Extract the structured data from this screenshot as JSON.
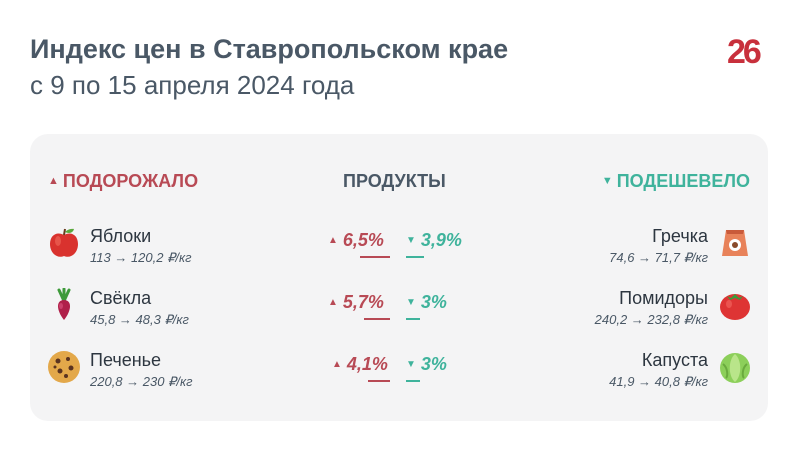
{
  "header": {
    "title": "Индекс цен в Ставропольском крае",
    "subtitle": "с 9 по 15 апреля 2024 года",
    "logo_text": "26"
  },
  "columns": {
    "up_label": "ПОДОРОЖАЛО",
    "middle_label": "ПРОДУКТЫ",
    "down_label": "ПОДЕШЕВЕЛО"
  },
  "rows": [
    {
      "up": {
        "name": "Яблоки",
        "price": "113 → 120,2 ₽/кг",
        "icon": "apple-icon",
        "change": "6,5%"
      },
      "down": {
        "name": "Гречка",
        "price": "74,6 → 71,7 ₽/кг",
        "icon": "buckwheat-bag-icon",
        "change": "3,9%"
      }
    },
    {
      "up": {
        "name": "Свёкла",
        "price": "45,8 → 48,3 ₽/кг",
        "icon": "beet-icon",
        "change": "5,7%"
      },
      "down": {
        "name": "Помидоры",
        "price": "240,2 → 232,8 ₽/кг",
        "icon": "tomato-icon",
        "change": "3%"
      }
    },
    {
      "up": {
        "name": "Печенье",
        "price": "220,8 → 230 ₽/кг",
        "icon": "cookie-icon",
        "change": "4,1%"
      },
      "down": {
        "name": "Капуста",
        "price": "41,9 → 40,8 ₽/кг",
        "icon": "cabbage-icon",
        "change": "3%"
      }
    }
  ],
  "colors": {
    "up": "#b84a55",
    "down": "#3fb39c",
    "text": "#4a5866",
    "logo": "#c8303c"
  }
}
